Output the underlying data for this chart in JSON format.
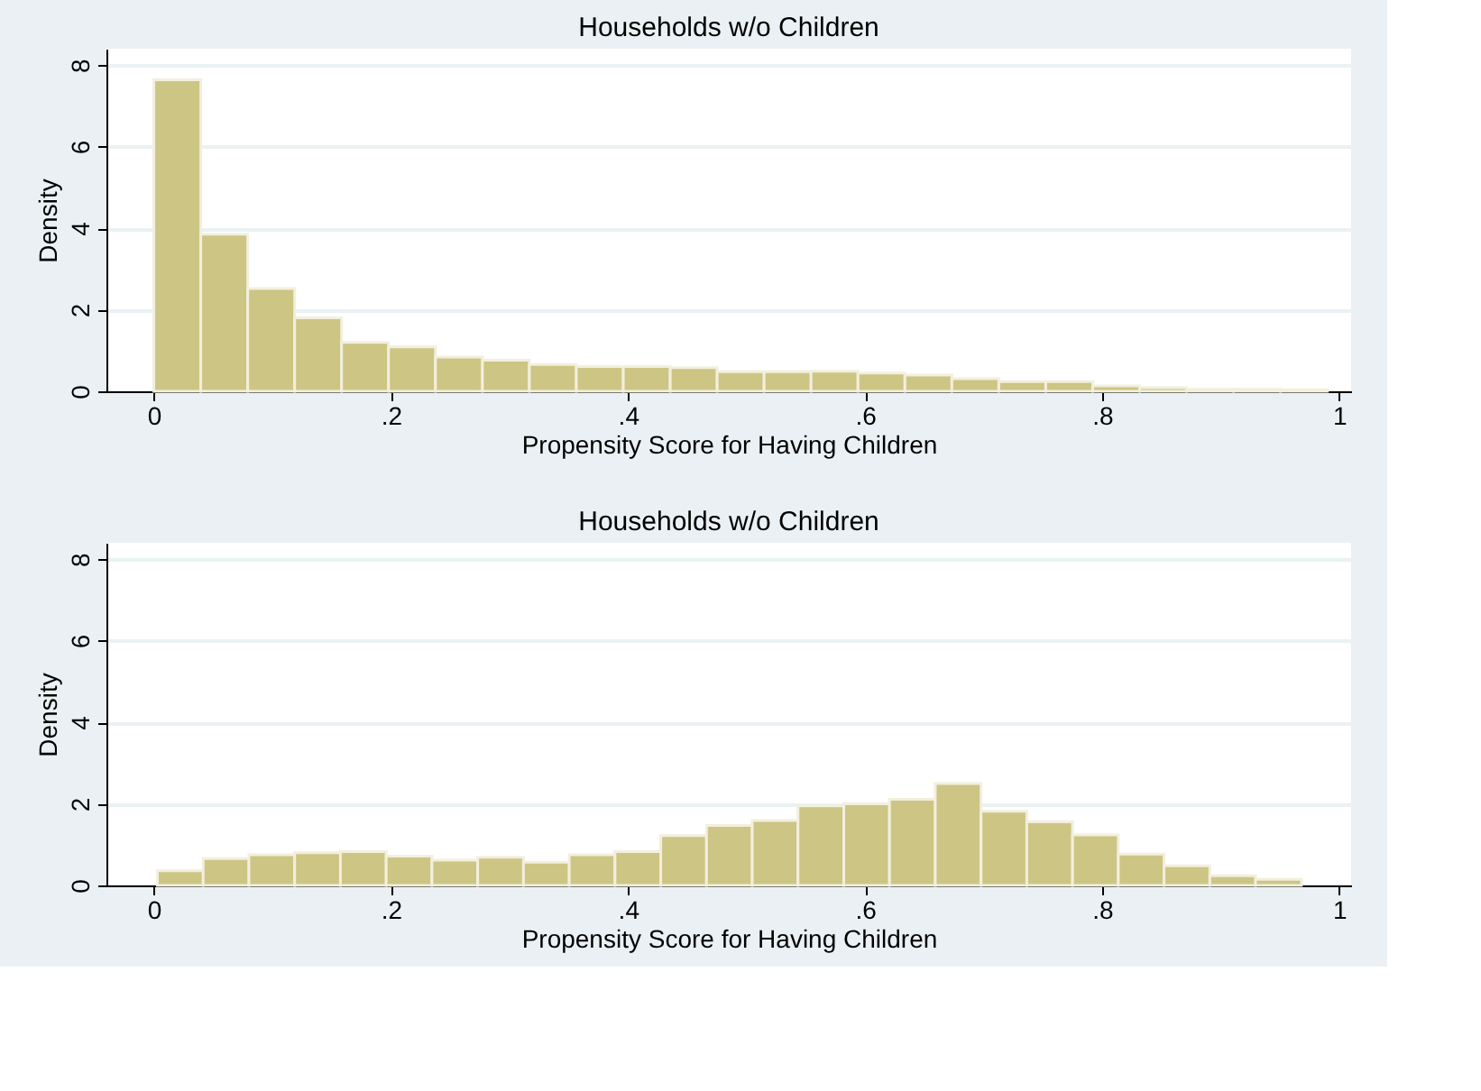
{
  "chart_data": [
    {
      "type": "histogram",
      "title": "Households w/o Children",
      "xlabel": "Propensity Score for Having Children",
      "ylabel": "Density",
      "color": "#cdc584",
      "bins": [
        0,
        0.0396,
        0.0792,
        0.1188,
        0.1584,
        0.198,
        0.2376,
        0.2772,
        0.3168,
        0.3564,
        0.396,
        0.4356,
        0.4752,
        0.5148,
        0.5544,
        0.594,
        0.6336,
        0.6732,
        0.7128,
        0.7524,
        0.792,
        0.8316,
        0.8712,
        0.9108,
        0.9504,
        0.99
      ],
      "values": [
        7.64,
        3.85,
        2.52,
        1.8,
        1.2,
        1.09,
        0.84,
        0.76,
        0.66,
        0.61,
        0.61,
        0.58,
        0.48,
        0.48,
        0.49,
        0.45,
        0.4,
        0.31,
        0.24,
        0.24,
        0.13,
        0.09,
        0.05,
        0.05,
        0.04
      ],
      "xlim": [
        -0.04,
        1.01
      ],
      "xticks": [
        {
          "value": 0,
          "label": "0"
        },
        {
          "value": 0.2,
          "label": ".2"
        },
        {
          "value": 0.4,
          "label": ".4"
        },
        {
          "value": 0.6,
          "label": ".6"
        },
        {
          "value": 0.8,
          "label": ".8"
        },
        {
          "value": 1,
          "label": "1"
        }
      ],
      "ylim": [
        0,
        8.4
      ],
      "yticks": [
        0,
        2,
        4,
        6,
        8
      ],
      "grid": "y"
    },
    {
      "type": "histogram",
      "title": "Households w/o Children",
      "xlabel": "Propensity Score for Having Children",
      "ylabel": "Density",
      "color": "#cdc584",
      "bins": [
        0.003,
        0.0416,
        0.0802,
        0.1188,
        0.1574,
        0.196,
        0.2346,
        0.2732,
        0.3118,
        0.3504,
        0.389,
        0.4276,
        0.4662,
        0.5048,
        0.5434,
        0.582,
        0.6206,
        0.6592,
        0.6978,
        0.7364,
        0.775,
        0.8136,
        0.8522,
        0.8908,
        0.9294,
        0.968
      ],
      "values": [
        0.36,
        0.66,
        0.75,
        0.8,
        0.83,
        0.72,
        0.62,
        0.69,
        0.57,
        0.75,
        0.83,
        1.22,
        1.47,
        1.59,
        1.95,
        2.0,
        2.11,
        2.5,
        1.82,
        1.56,
        1.24,
        0.77,
        0.48,
        0.24,
        0.15
      ],
      "xlim": [
        -0.04,
        1.01
      ],
      "xticks": [
        {
          "value": 0,
          "label": "0"
        },
        {
          "value": 0.2,
          "label": ".2"
        },
        {
          "value": 0.4,
          "label": ".4"
        },
        {
          "value": 0.6,
          "label": ".6"
        },
        {
          "value": 0.8,
          "label": ".8"
        },
        {
          "value": 1,
          "label": "1"
        }
      ],
      "ylim": [
        0,
        8.4
      ],
      "yticks": [
        0,
        2,
        4,
        6,
        8
      ],
      "grid": "y"
    }
  ]
}
